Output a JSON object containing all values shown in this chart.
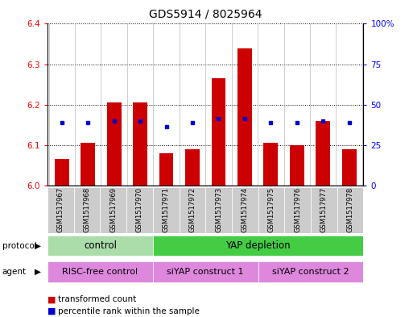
{
  "title": "GDS5914 / 8025964",
  "samples": [
    "GSM1517967",
    "GSM1517968",
    "GSM1517969",
    "GSM1517970",
    "GSM1517971",
    "GSM1517972",
    "GSM1517973",
    "GSM1517974",
    "GSM1517975",
    "GSM1517976",
    "GSM1517977",
    "GSM1517978"
  ],
  "bar_values": [
    6.065,
    6.105,
    6.205,
    6.205,
    6.08,
    6.09,
    6.265,
    6.34,
    6.105,
    6.1,
    6.16,
    6.09
  ],
  "blue_dot_values": [
    6.155,
    6.155,
    6.16,
    6.16,
    6.145,
    6.155,
    6.165,
    6.165,
    6.155,
    6.155,
    6.16,
    6.155
  ],
  "bar_bottom": 6.0,
  "ylim": [
    6.0,
    6.4
  ],
  "yticks_left": [
    6.0,
    6.1,
    6.2,
    6.3,
    6.4
  ],
  "yticks_right": [
    0,
    25,
    50,
    75,
    100
  ],
  "bar_color": "#cc0000",
  "dot_color": "#0000cc",
  "protocol_control_label": "control",
  "protocol_yap_label": "YAP depletion",
  "protocol_control_color": "#aaddaa",
  "protocol_yap_color": "#44cc44",
  "agent_risc_label": "RISC-free control",
  "agent_siyap1_label": "siYAP construct 1",
  "agent_siyap2_label": "siYAP construct 2",
  "agent_color": "#dd88dd",
  "legend_bar_label": "transformed count",
  "legend_dot_label": "percentile rank within the sample",
  "bar_width": 0.55,
  "xtick_bg_color": "#cccccc",
  "title_fontsize": 10
}
